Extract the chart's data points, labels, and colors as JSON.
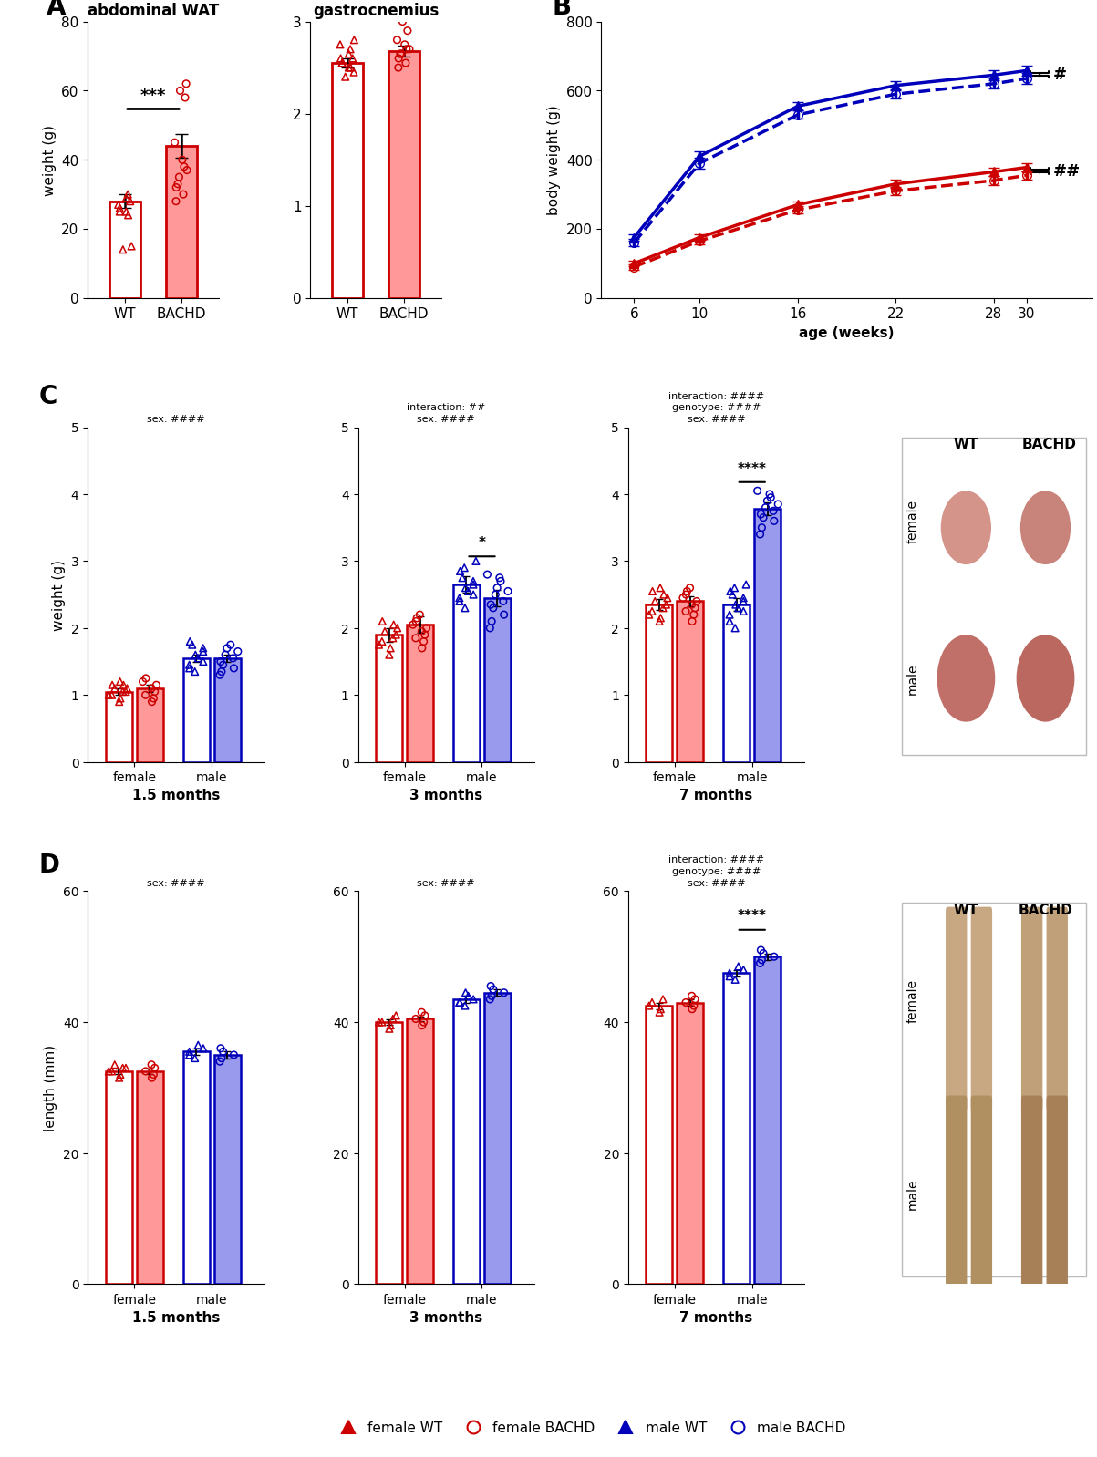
{
  "panel_A_WAT": {
    "groups": [
      "WT",
      "BACHD"
    ],
    "means": [
      28.0,
      44.0
    ],
    "sems": [
      2.0,
      3.5
    ],
    "wt_points_tri": [
      14,
      15,
      24,
      25,
      25,
      26,
      27,
      28,
      29,
      30
    ],
    "bachd_points_circ": [
      28,
      30,
      32,
      33,
      35,
      37,
      38,
      40,
      45,
      58,
      60,
      62
    ],
    "ylim": [
      0,
      80
    ],
    "yticks": [
      0,
      20,
      40,
      60,
      80
    ],
    "ylabel": "weight (g)",
    "title": "abdominal WAT",
    "sig": "***"
  },
  "panel_A_gastroc": {
    "groups": [
      "WT",
      "BACHD"
    ],
    "means": [
      2.55,
      2.68
    ],
    "sems": [
      0.05,
      0.06
    ],
    "wt_points_tri": [
      2.4,
      2.45,
      2.5,
      2.5,
      2.55,
      2.55,
      2.6,
      2.6,
      2.65,
      2.7,
      2.75,
      2.8
    ],
    "bachd_points_circ": [
      2.5,
      2.55,
      2.6,
      2.65,
      2.65,
      2.7,
      2.7,
      2.75,
      2.8,
      2.9,
      3.0
    ],
    "ylim": [
      0,
      3
    ],
    "yticks": [
      0,
      1,
      2,
      3
    ],
    "title": "gastrocnemius"
  },
  "panel_B": {
    "ages": [
      6,
      10,
      16,
      22,
      28,
      30
    ],
    "male_WT": [
      175,
      410,
      555,
      615,
      645,
      658
    ],
    "male_BACHD": [
      160,
      390,
      530,
      590,
      620,
      635
    ],
    "female_WT": [
      100,
      175,
      270,
      330,
      365,
      378
    ],
    "female_BACHD": [
      90,
      165,
      255,
      310,
      340,
      355
    ],
    "male_WT_err": [
      10,
      15,
      12,
      12,
      15,
      15
    ],
    "male_BACHD_err": [
      10,
      15,
      12,
      12,
      15,
      15
    ],
    "female_WT_err": [
      8,
      10,
      10,
      12,
      12,
      12
    ],
    "female_BACHD_err": [
      8,
      10,
      10,
      12,
      12,
      12
    ],
    "ylim": [
      0,
      800
    ],
    "yticks": [
      0,
      200,
      400,
      600,
      800
    ],
    "ylabel": "body weight (g)",
    "xlabel": "age (weeks)",
    "annot_male": "#",
    "annot_female": "##"
  },
  "panel_C": {
    "timepoints": [
      "1.5 months",
      "3 months",
      "7 months"
    ],
    "female_WT_means": [
      1.05,
      1.9,
      2.35
    ],
    "female_BACHD_means": [
      1.1,
      2.05,
      2.4
    ],
    "male_WT_means": [
      1.55,
      2.65,
      2.35
    ],
    "male_BACHD_means": [
      1.55,
      2.45,
      3.78
    ],
    "female_WT_sems": [
      0.05,
      0.1,
      0.08
    ],
    "female_BACHD_sems": [
      0.05,
      0.12,
      0.08
    ],
    "male_WT_sems": [
      0.05,
      0.12,
      0.1
    ],
    "male_BACHD_sems": [
      0.05,
      0.12,
      0.1
    ],
    "ylim": [
      0,
      5
    ],
    "yticks": [
      0,
      1,
      2,
      3,
      4,
      5
    ],
    "ylabel": "weight (g)",
    "stats_1_5": "sex: ####",
    "stats_3": "interaction: ##\nsex: ####",
    "stats_7": "interaction: ####\ngenotype: ####\nsex: ####",
    "sig_3": "*",
    "sig_7": "****",
    "female_WT_pts_1_5": [
      0.9,
      0.95,
      1.0,
      1.0,
      1.05,
      1.05,
      1.1,
      1.1,
      1.15,
      1.15,
      1.2
    ],
    "female_BACHD_pts_1_5": [
      0.9,
      0.95,
      1.0,
      1.05,
      1.1,
      1.15,
      1.2,
      1.25
    ],
    "male_WT_pts_1_5": [
      1.35,
      1.4,
      1.45,
      1.5,
      1.55,
      1.6,
      1.65,
      1.7,
      1.75,
      1.8
    ],
    "male_BACHD_pts_1_5": [
      1.3,
      1.35,
      1.4,
      1.45,
      1.5,
      1.55,
      1.6,
      1.65,
      1.7,
      1.75
    ],
    "female_WT_pts_3": [
      1.6,
      1.7,
      1.75,
      1.8,
      1.85,
      1.9,
      1.95,
      2.0,
      2.05,
      2.1
    ],
    "female_BACHD_pts_3": [
      1.7,
      1.8,
      1.85,
      1.9,
      1.95,
      2.0,
      2.05,
      2.1,
      2.15,
      2.2
    ],
    "male_WT_pts_3": [
      2.3,
      2.4,
      2.45,
      2.5,
      2.55,
      2.6,
      2.65,
      2.7,
      2.75,
      2.85,
      2.9,
      3.0
    ],
    "male_BACHD_pts_3": [
      2.0,
      2.1,
      2.2,
      2.3,
      2.35,
      2.4,
      2.5,
      2.55,
      2.6,
      2.7,
      2.75,
      2.8
    ],
    "female_WT_pts_7": [
      2.1,
      2.15,
      2.2,
      2.25,
      2.3,
      2.35,
      2.4,
      2.45,
      2.5,
      2.55,
      2.6
    ],
    "female_BACHD_pts_7": [
      2.1,
      2.2,
      2.25,
      2.3,
      2.35,
      2.4,
      2.45,
      2.5,
      2.55,
      2.6
    ],
    "male_WT_pts_7": [
      2.0,
      2.1,
      2.2,
      2.25,
      2.3,
      2.35,
      2.4,
      2.45,
      2.5,
      2.55,
      2.6,
      2.65
    ],
    "male_BACHD_pts_7": [
      3.4,
      3.5,
      3.6,
      3.65,
      3.7,
      3.75,
      3.8,
      3.85,
      3.9,
      3.95,
      4.0,
      4.05
    ]
  },
  "panel_D": {
    "timepoints": [
      "1.5 months",
      "3 months",
      "7 months"
    ],
    "female_WT_means": [
      32.5,
      40.0,
      42.5
    ],
    "female_BACHD_means": [
      32.5,
      40.5,
      43.0
    ],
    "male_WT_means": [
      35.5,
      43.5,
      47.5
    ],
    "male_BACHD_means": [
      35.0,
      44.5,
      50.0
    ],
    "female_WT_sems": [
      0.4,
      0.4,
      0.5
    ],
    "female_BACHD_sems": [
      0.4,
      0.4,
      0.5
    ],
    "male_WT_sems": [
      0.5,
      0.5,
      0.5
    ],
    "male_BACHD_sems": [
      0.5,
      0.5,
      0.5
    ],
    "ylim": [
      0,
      60
    ],
    "yticks": [
      0,
      20,
      40,
      60
    ],
    "ylabel": "length (mm)",
    "stats_1_5": "sex: ####",
    "stats_3": "sex: ####",
    "stats_7": "interaction: ####\ngenotype: ####\nsex: ####",
    "sig_7": "****",
    "female_WT_pts_1_5": [
      31.5,
      32.0,
      32.5,
      32.5,
      33.0,
      33.0,
      33.5
    ],
    "female_BACHD_pts_1_5": [
      31.5,
      32.0,
      32.5,
      33.0,
      33.5
    ],
    "male_WT_pts_1_5": [
      34.5,
      35.0,
      35.5,
      36.0,
      36.5
    ],
    "male_BACHD_pts_1_5": [
      34.0,
      34.5,
      35.0,
      35.5,
      36.0
    ],
    "female_WT_pts_3": [
      39.0,
      39.5,
      40.0,
      40.0,
      40.5,
      41.0
    ],
    "female_BACHD_pts_3": [
      39.5,
      40.0,
      40.5,
      41.0,
      41.5
    ],
    "male_WT_pts_3": [
      42.5,
      43.0,
      43.0,
      43.5,
      44.0,
      44.5
    ],
    "male_BACHD_pts_3": [
      43.5,
      44.0,
      44.5,
      45.0,
      45.5
    ],
    "female_WT_pts_7": [
      41.5,
      42.0,
      42.5,
      43.0,
      43.5
    ],
    "female_BACHD_pts_7": [
      42.0,
      42.5,
      43.0,
      43.5,
      44.0
    ],
    "male_WT_pts_7": [
      46.5,
      47.0,
      47.5,
      48.0,
      48.5
    ],
    "male_BACHD_pts_7": [
      49.0,
      49.5,
      50.0,
      50.5,
      51.0
    ]
  },
  "colors": {
    "red_dark": "#CC0000",
    "red_light": "#FF9999",
    "blue_dark": "#0000BB",
    "blue_light": "#9999EE"
  },
  "legend": {
    "entries": [
      "female WT",
      "female BACHD",
      "male WT",
      "male BACHD"
    ],
    "markers": [
      "^",
      "o",
      "^",
      "o"
    ],
    "colors": [
      "#CC0000",
      "#CC0000",
      "#0000BB",
      "#0000BB"
    ],
    "fillcolors": [
      "#CC0000",
      "none",
      "#0000BB",
      "none"
    ]
  }
}
